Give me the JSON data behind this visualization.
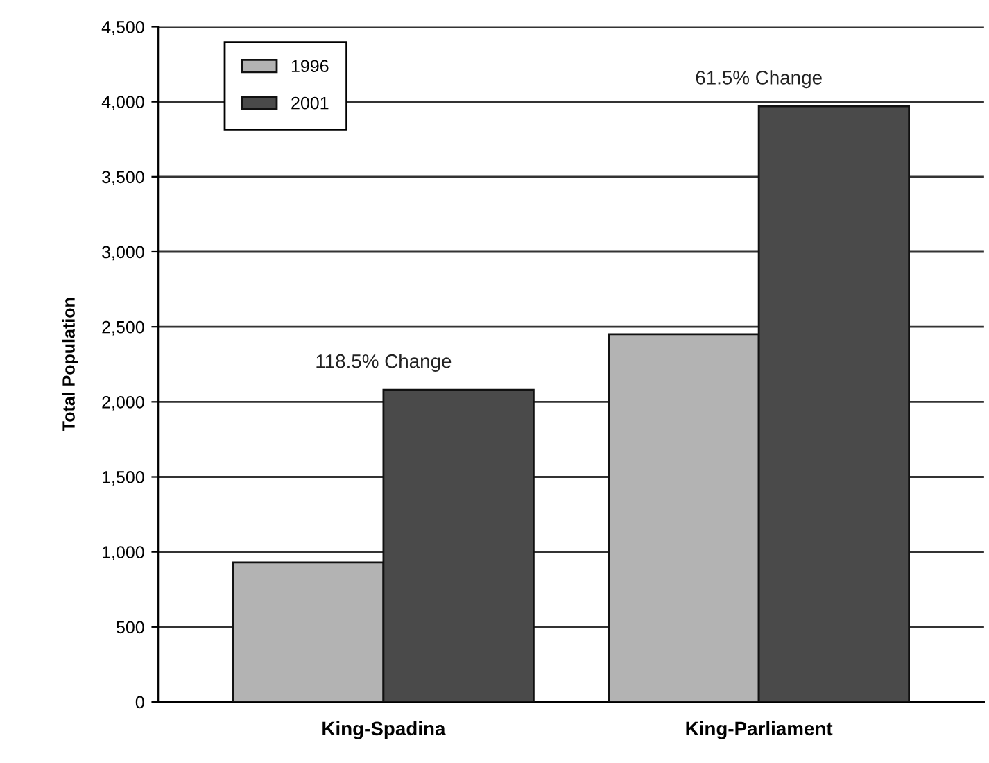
{
  "chart_data": {
    "type": "bar",
    "ylabel": "Total Population",
    "categories": [
      "King-Spadina",
      "King-Parliament"
    ],
    "series": [
      {
        "name": "1996",
        "color": "#b3b3b3",
        "values": [
          930,
          2450
        ]
      },
      {
        "name": "2001",
        "color": "#4a4a4a",
        "values": [
          2080,
          3970
        ]
      }
    ],
    "ylim": [
      0,
      4500
    ],
    "yticks": [
      0,
      {
        "value": 500,
        "label": "500"
      },
      {
        "value": 1000,
        "label": "1,000"
      },
      {
        "value": 1500,
        "label": "1,500"
      },
      {
        "value": 2000,
        "label": "2,000"
      },
      {
        "value": 2500,
        "label": "2,500"
      },
      {
        "value": 3000,
        "label": "3,000"
      },
      {
        "value": 3500,
        "label": "3,500"
      },
      {
        "value": 4000,
        "label": "4,000"
      },
      {
        "value": 4500,
        "label": "4,500"
      }
    ],
    "grid": "y",
    "legend": "top left",
    "annotations": [
      "118.5% Change",
      "61.5% Change"
    ]
  }
}
